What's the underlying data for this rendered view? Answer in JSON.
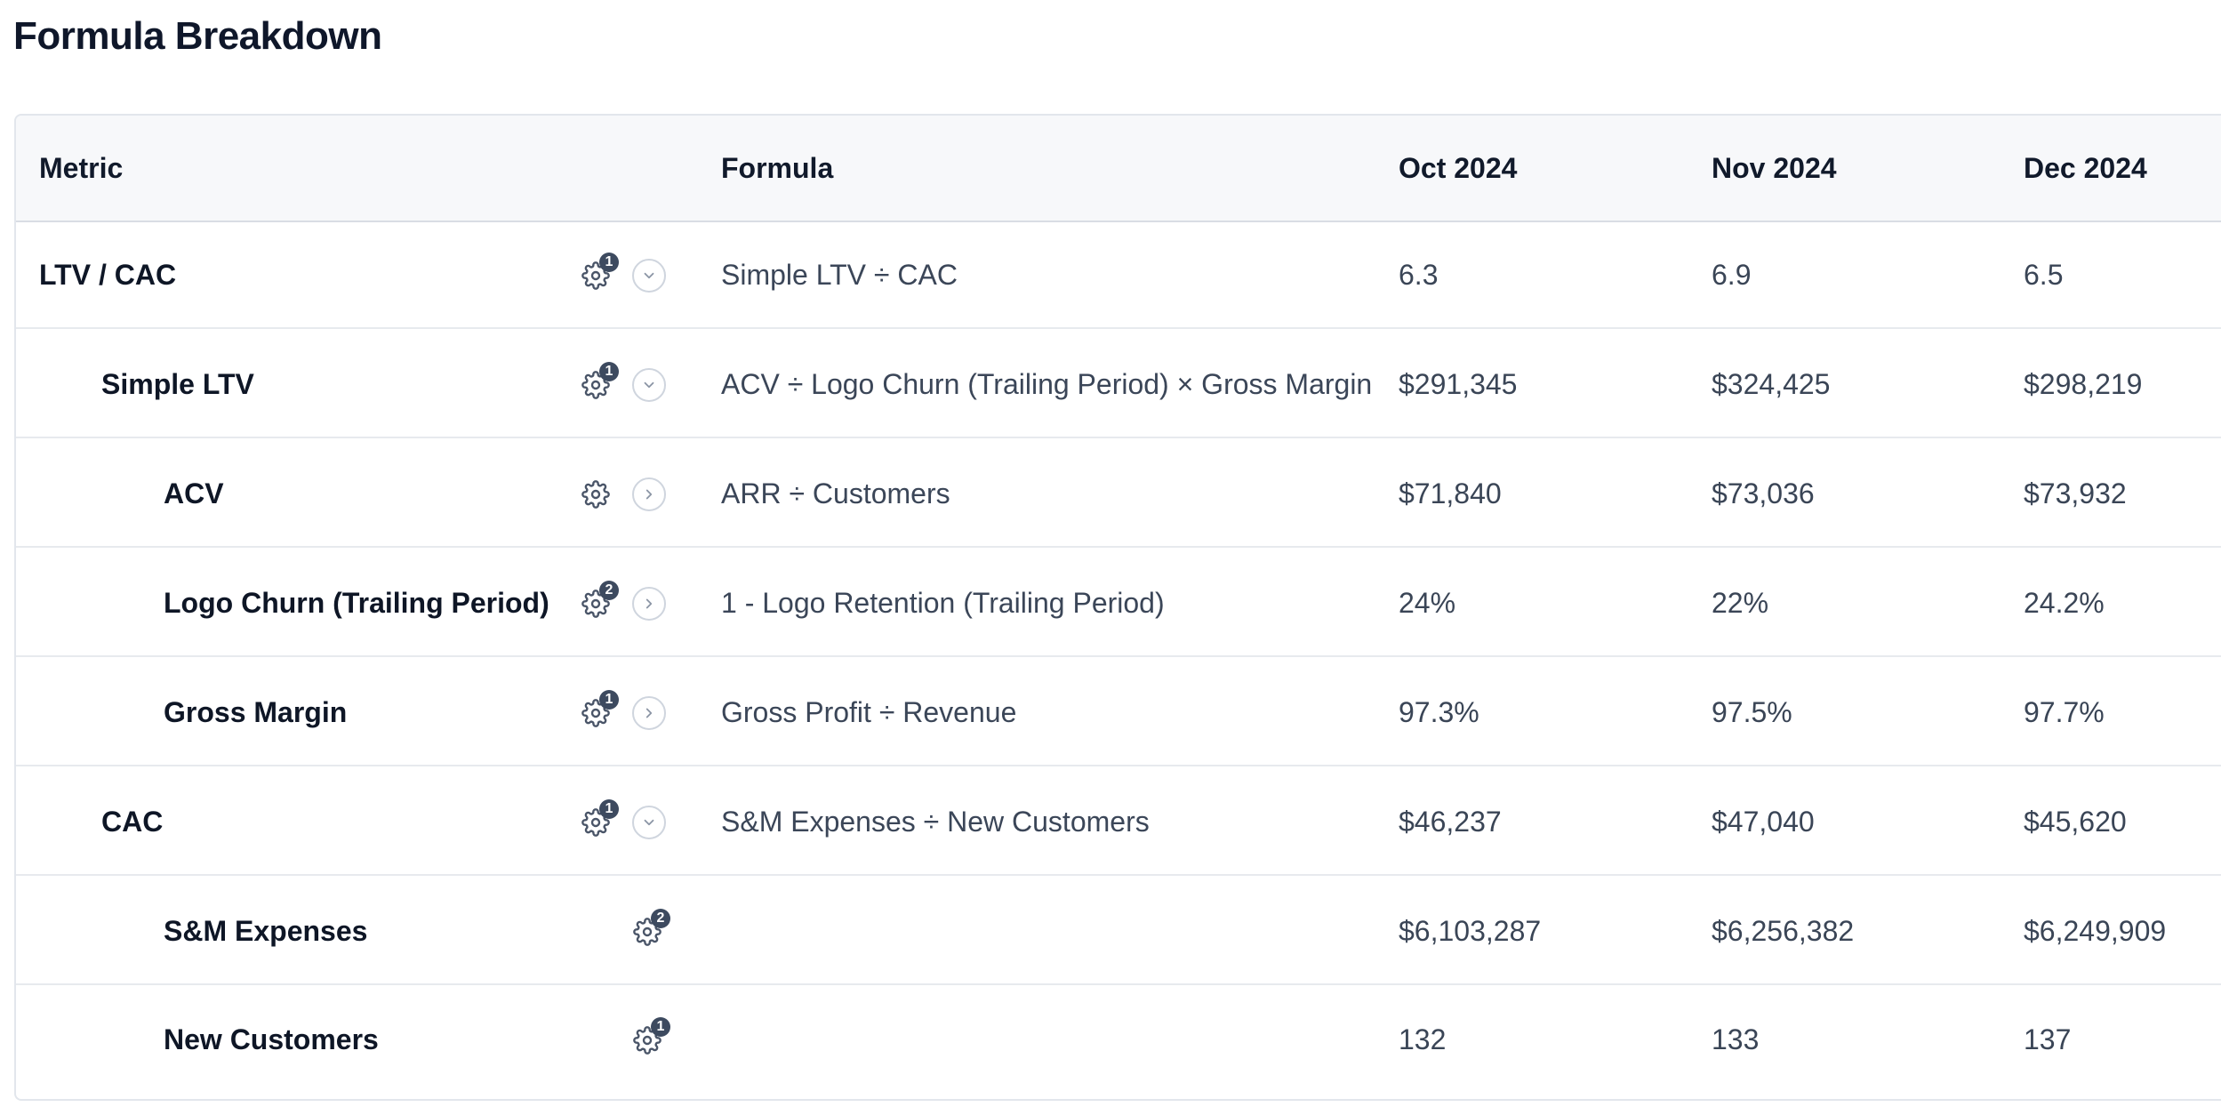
{
  "page": {
    "title": "Formula Breakdown"
  },
  "table": {
    "headers": {
      "metric": "Metric",
      "formula": "Formula",
      "months": [
        "Oct 2024",
        "Nov 2024",
        "Dec 2024"
      ]
    },
    "rows": [
      {
        "metric": "LTV / CAC",
        "level": 0,
        "badge": "1",
        "toggle": "chevron-down-icon",
        "formula": "Simple LTV ÷ CAC",
        "values": [
          "6.3",
          "6.9",
          "6.5"
        ]
      },
      {
        "metric": "Simple LTV",
        "level": 1,
        "badge": "1",
        "toggle": "chevron-down-icon",
        "formula": "ACV ÷ Logo Churn (Trailing Period) × Gross Margin",
        "values": [
          "$291,345",
          "$324,425",
          "$298,219"
        ]
      },
      {
        "metric": "ACV",
        "level": 2,
        "badge": "",
        "toggle": "chevron-right-icon",
        "formula": "ARR ÷ Customers",
        "values": [
          "$71,840",
          "$73,036",
          "$73,932"
        ]
      },
      {
        "metric": "Logo Churn (Trailing Period)",
        "level": 2,
        "badge": "2",
        "toggle": "chevron-right-icon",
        "formula": "1 - Logo Retention (Trailing Period)",
        "values": [
          "24%",
          "22%",
          "24.2%"
        ]
      },
      {
        "metric": "Gross Margin",
        "level": 2,
        "badge": "1",
        "toggle": "chevron-right-icon",
        "formula": "Gross Profit ÷ Revenue",
        "values": [
          "97.3%",
          "97.5%",
          "97.7%"
        ]
      },
      {
        "metric": "CAC",
        "level": 1,
        "badge": "1",
        "toggle": "chevron-down-icon",
        "formula": "S&M Expenses ÷ New Customers",
        "values": [
          "$46,237",
          "$47,040",
          "$45,620"
        ]
      },
      {
        "metric": "S&M Expenses",
        "level": 2,
        "badge": "2",
        "toggle": "",
        "formula": "",
        "values": [
          "$6,103,287",
          "$6,256,382",
          "$6,249,909"
        ]
      },
      {
        "metric": "New Customers",
        "level": 2,
        "badge": "1",
        "toggle": "",
        "formula": "",
        "values": [
          "132",
          "133",
          "137"
        ]
      }
    ]
  },
  "colors": {
    "badge": "#3d4a5f",
    "border": "#e2e6ec",
    "header_bg": "#f7f8fa"
  }
}
